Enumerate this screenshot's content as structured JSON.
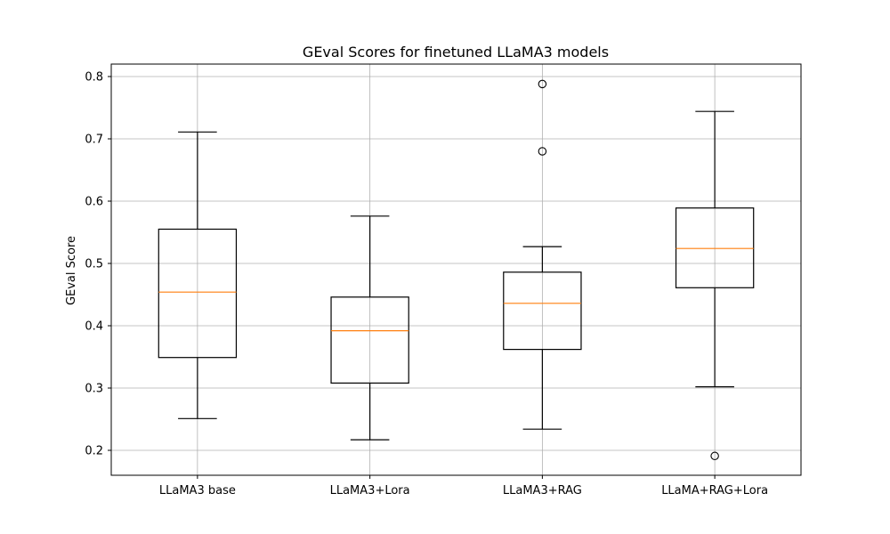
{
  "chart_data": {
    "type": "box",
    "title": "GEval Scores for finetuned LLaMA3 models",
    "xlabel": "",
    "ylabel": "GEval Score",
    "ylim": [
      0.16,
      0.82
    ],
    "yticks": [
      "0.2",
      "0.3",
      "0.4",
      "0.5",
      "0.6",
      "0.7",
      "0.8"
    ],
    "grid": true,
    "categories": [
      "LLaMA3 base",
      "LLaMA3+Lora",
      "LLaMA3+RAG",
      "LLaMA+RAG+Lora"
    ],
    "boxes": [
      {
        "whisker_low": 0.251,
        "q1": 0.349,
        "median": 0.454,
        "q3": 0.555,
        "whisker_high": 0.711,
        "outliers": []
      },
      {
        "whisker_low": 0.217,
        "q1": 0.308,
        "median": 0.392,
        "q3": 0.446,
        "whisker_high": 0.576,
        "outliers": []
      },
      {
        "whisker_low": 0.234,
        "q1": 0.362,
        "median": 0.436,
        "q3": 0.486,
        "whisker_high": 0.527,
        "outliers": [
          0.68,
          0.788
        ]
      },
      {
        "whisker_low": 0.302,
        "q1": 0.461,
        "median": 0.524,
        "q3": 0.589,
        "whisker_high": 0.744,
        "outliers": [
          0.191
        ]
      }
    ],
    "colors": {
      "box": "#000000",
      "median": "#ff7f0e",
      "grid": "#b0b0b0"
    }
  }
}
